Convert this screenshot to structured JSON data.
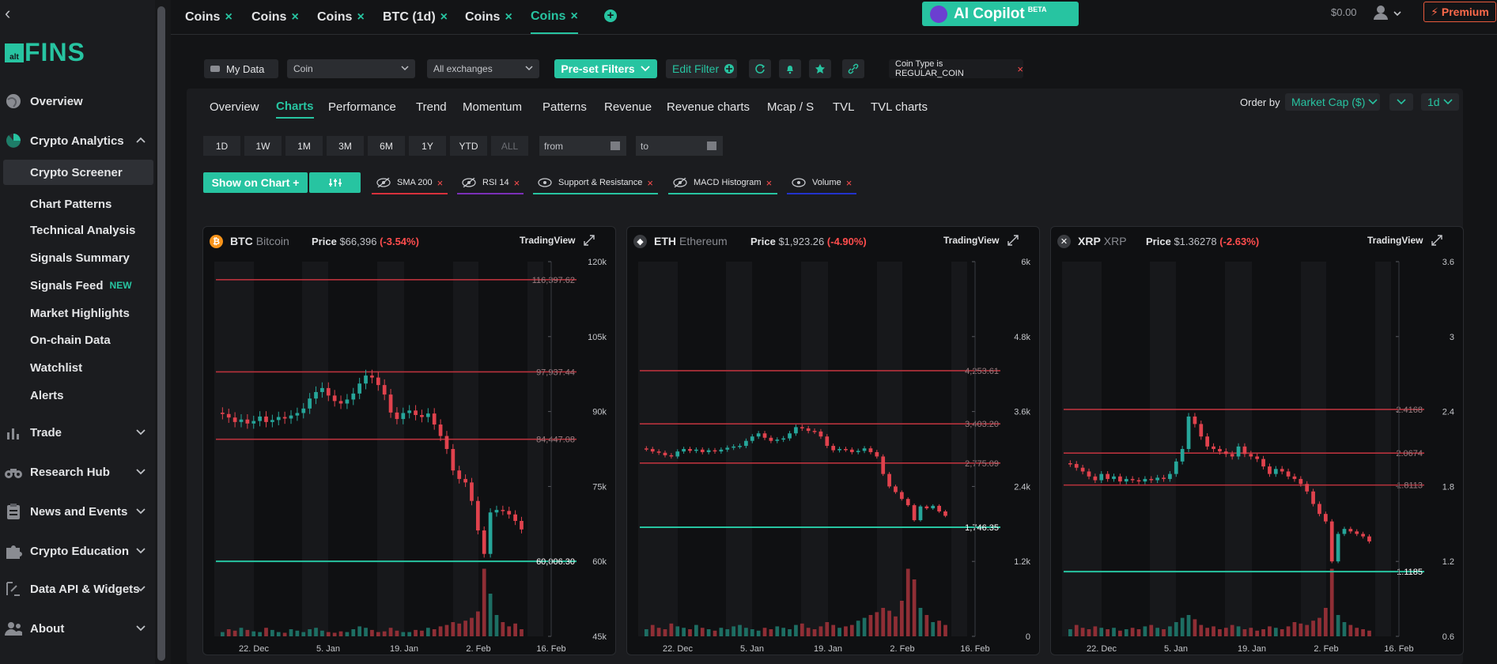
{
  "sidebar": {
    "logo_small": "alt",
    "logo": "FINS",
    "items": [
      {
        "label": "Overview",
        "icon": "globe-icon"
      },
      {
        "label": "Crypto Analytics",
        "icon": "pie-chart-icon"
      },
      {
        "label": "Trade",
        "icon": "bar-chart-icon"
      },
      {
        "label": "Research Hub",
        "icon": "binoculars-icon"
      },
      {
        "label": "News and Events",
        "icon": "clipboard-icon"
      },
      {
        "label": "Crypto Education",
        "icon": "puzzle-icon"
      },
      {
        "label": "Data API & Widgets",
        "icon": "link-api-icon"
      },
      {
        "label": "About",
        "icon": "users-icon"
      }
    ],
    "sub_items": [
      {
        "label": "Crypto Screener",
        "active": true
      },
      {
        "label": "Chart Patterns"
      },
      {
        "label": "Technical Analysis"
      },
      {
        "label": "Signals Summary"
      },
      {
        "label": "Signals Feed",
        "badge": "NEW"
      },
      {
        "label": "Market Highlights"
      },
      {
        "label": "On-chain Data"
      },
      {
        "label": "Watchlist"
      },
      {
        "label": "Alerts"
      }
    ]
  },
  "topbar": {
    "tabs": [
      {
        "label": "Coins"
      },
      {
        "label": "Coins"
      },
      {
        "label": "Coins"
      },
      {
        "label": "BTC (1d)"
      },
      {
        "label": "Coins"
      },
      {
        "label": "Coins",
        "active": true
      }
    ],
    "close_glyph": "×",
    "add_glyph": "+",
    "copilot": "AI Copilot",
    "copilot_badge": "BETA",
    "balance": "$0.00",
    "premium": "⚡ Premium"
  },
  "filters": {
    "my_data": "My Data",
    "coin_select": "Coin",
    "exchange_select": "All exchanges",
    "preset": "Pre-set Filters",
    "edit_filter": "Edit Filter",
    "coin_type": "Coin Type is REGULAR_COIN"
  },
  "subtabs": [
    "Overview",
    "Charts",
    "Performance",
    "Trend",
    "Momentum",
    "Patterns",
    "Revenue",
    "Revenue charts",
    "Mcap / S",
    "TVL",
    "TVL charts"
  ],
  "order_by": {
    "label": "Order by",
    "value": "Market Cap ($)",
    "period": "1d"
  },
  "ranges": [
    "1D",
    "1W",
    "1M",
    "3M",
    "6M",
    "1Y",
    "YTD",
    "ALL"
  ],
  "date_from": "from",
  "date_to": "to",
  "show_on_chart": "Show on Chart +",
  "indicators": [
    {
      "label": "SMA 200",
      "color": "#d8313c"
    },
    {
      "label": "RSI 14",
      "color": "#7b2fb8"
    },
    {
      "label": "Support & Resistance",
      "color": "#27c4a1"
    },
    {
      "label": "MACD Histogram",
      "color": "#27c4a1"
    },
    {
      "label": "Volume",
      "color": "#2233cc"
    }
  ],
  "colors": {
    "accent": "#27c4a1",
    "down": "#e0424d",
    "up": "#26a69a"
  },
  "cards": [
    {
      "symbol": "BTC",
      "name": "Bitcoin",
      "price_label": "Price",
      "price": "$66,396",
      "change": "(-3.54%)",
      "tradingview": "TradingView",
      "icon": "bitcoin-icon",
      "icon_glyph": "₿",
      "icon_color": "#f7931a"
    },
    {
      "symbol": "ETH",
      "name": "Ethereum",
      "price_label": "Price",
      "price": "$1,923.26",
      "change": "(-4.90%)",
      "tradingview": "TradingView",
      "icon": "ethereum-icon",
      "icon_glyph": "◆",
      "icon_color": "#e3e4e6"
    },
    {
      "symbol": "XRP",
      "name": "XRP",
      "price_label": "Price",
      "price": "$1.36278",
      "change": "(-2.63%)",
      "tradingview": "TradingView",
      "icon": "xrp-icon",
      "icon_glyph": "✕",
      "icon_color": "#3a3c40"
    }
  ],
  "chart_data": [
    {
      "type": "candlestick",
      "symbol": "BTC",
      "x_ticks": [
        "22. Dec",
        "5. Jan",
        "19. Jan",
        "2. Feb",
        "16. Feb"
      ],
      "y_ticks": [
        "120k",
        "105k",
        "90k",
        "75k",
        "60k",
        "45k"
      ],
      "ylim": [
        45000,
        120000
      ],
      "levels": [
        {
          "value": 116397.62,
          "label": "116,397.62",
          "kind": "resistance"
        },
        {
          "value": 97937.44,
          "label": "97,937.44",
          "kind": "resistance"
        },
        {
          "value": 84447.08,
          "label": "84,447.08",
          "kind": "resistance"
        },
        {
          "value": 60006.3,
          "label": "60,006.30",
          "kind": "support"
        }
      ],
      "close": [
        89500,
        88800,
        87900,
        88400,
        87600,
        88100,
        89000,
        87900,
        88300,
        88900,
        88600,
        89200,
        89700,
        90600,
        92600,
        93900,
        94700,
        93200,
        92100,
        91600,
        92400,
        93600,
        95600,
        97200,
        96800,
        95300,
        93400,
        89800,
        88500,
        89700,
        90200,
        89300,
        88900,
        89600,
        87400,
        85100,
        82500,
        78200,
        76500,
        75800,
        72100,
        66200,
        61500,
        69800,
        70300,
        70100,
        69400,
        68100,
        66400
      ],
      "volume": [
        0.06,
        0.1,
        0.08,
        0.12,
        0.09,
        0.07,
        0.06,
        0.12,
        0.09,
        0.06,
        0.05,
        0.1,
        0.08,
        0.06,
        0.1,
        0.12,
        0.08,
        0.06,
        0.05,
        0.07,
        0.06,
        0.1,
        0.14,
        0.12,
        0.09,
        0.06,
        0.07,
        0.12,
        0.08,
        0.06,
        0.06,
        0.09,
        0.08,
        0.12,
        0.1,
        0.14,
        0.16,
        0.2,
        0.18,
        0.22,
        0.26,
        0.35,
        0.95,
        0.6,
        0.3,
        0.2,
        0.14,
        0.18,
        0.1
      ]
    },
    {
      "type": "candlestick",
      "symbol": "ETH",
      "x_ticks": [
        "22. Dec",
        "5. Jan",
        "19. Jan",
        "2. Feb",
        "16. Feb"
      ],
      "y_ticks": [
        "6k",
        "4.8k",
        "3.6k",
        "2.4k",
        "1.2k",
        "0"
      ],
      "ylim": [
        0,
        6000
      ],
      "levels": [
        {
          "value": 4253.61,
          "label": "4,253.61",
          "kind": "resistance"
        },
        {
          "value": 3403.2,
          "label": "3,403.20",
          "kind": "resistance"
        },
        {
          "value": 2775.09,
          "label": "2,775.09",
          "kind": "resistance"
        },
        {
          "value": 1746.35,
          "label": "1,746.35",
          "kind": "support"
        }
      ],
      "close": [
        3000,
        2960,
        2940,
        2900,
        2880,
        2960,
        3000,
        2970,
        2990,
        2950,
        2980,
        2960,
        2990,
        3020,
        3040,
        3050,
        3130,
        3200,
        3250,
        3180,
        3130,
        3150,
        3170,
        3250,
        3350,
        3330,
        3290,
        3280,
        3200,
        3050,
        2980,
        3000,
        2990,
        2950,
        2970,
        3010,
        2950,
        2880,
        2600,
        2400,
        2310,
        2200,
        2100,
        1860,
        2080,
        2050,
        2090,
        2000,
        1930
      ],
      "volume": [
        0.1,
        0.16,
        0.12,
        0.1,
        0.18,
        0.14,
        0.12,
        0.1,
        0.16,
        0.12,
        0.1,
        0.08,
        0.12,
        0.1,
        0.14,
        0.16,
        0.12,
        0.1,
        0.08,
        0.12,
        0.1,
        0.14,
        0.12,
        0.1,
        0.16,
        0.18,
        0.12,
        0.1,
        0.14,
        0.2,
        0.16,
        0.12,
        0.14,
        0.16,
        0.22,
        0.26,
        0.3,
        0.34,
        0.4,
        0.36,
        0.28,
        0.5,
        0.95,
        0.8,
        0.4,
        0.3,
        0.2,
        0.22,
        0.16
      ]
    },
    {
      "type": "candlestick",
      "symbol": "XRP",
      "x_ticks": [
        "22. Dec",
        "5. Jan",
        "19. Jan",
        "2. Feb",
        "16. Feb"
      ],
      "y_ticks": [
        "3.6",
        "3",
        "2.4",
        "1.8",
        "1.2",
        "0.6"
      ],
      "ylim": [
        0.6,
        3.6
      ],
      "levels": [
        {
          "value": 2.4168,
          "label": "2.4168",
          "kind": "resistance"
        },
        {
          "value": 2.0674,
          "label": "2.0674",
          "kind": "resistance"
        },
        {
          "value": 1.8113,
          "label": "1.8113",
          "kind": "resistance"
        },
        {
          "value": 1.1185,
          "label": "1.1185",
          "kind": "support"
        }
      ],
      "close": [
        1.98,
        1.95,
        1.92,
        1.88,
        1.85,
        1.9,
        1.86,
        1.88,
        1.84,
        1.86,
        1.85,
        1.84,
        1.86,
        1.85,
        1.87,
        1.86,
        1.9,
        2.0,
        2.1,
        2.36,
        2.3,
        2.2,
        2.12,
        2.1,
        2.08,
        2.06,
        2.04,
        2.12,
        2.06,
        2.04,
        2.02,
        1.96,
        1.9,
        1.94,
        1.92,
        1.88,
        1.86,
        1.82,
        1.76,
        1.66,
        1.58,
        1.52,
        1.2,
        1.42,
        1.46,
        1.44,
        1.42,
        1.4,
        1.36
      ],
      "volume": [
        0.1,
        0.16,
        0.12,
        0.1,
        0.14,
        0.12,
        0.1,
        0.12,
        0.08,
        0.1,
        0.12,
        0.1,
        0.14,
        0.16,
        0.12,
        0.1,
        0.14,
        0.2,
        0.26,
        0.3,
        0.24,
        0.16,
        0.12,
        0.14,
        0.1,
        0.12,
        0.16,
        0.14,
        0.1,
        0.12,
        0.08,
        0.1,
        0.14,
        0.12,
        0.1,
        0.14,
        0.2,
        0.18,
        0.16,
        0.22,
        0.26,
        0.4,
        0.95,
        0.3,
        0.2,
        0.16,
        0.12,
        0.1,
        0.08
      ]
    }
  ]
}
